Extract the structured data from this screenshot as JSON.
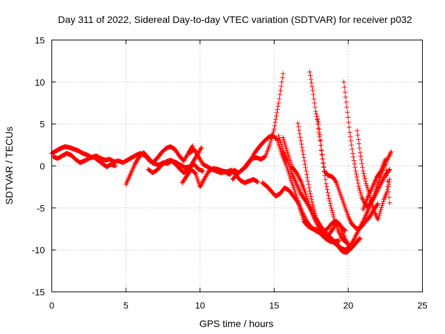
{
  "chart_data": {
    "type": "scatter",
    "title": "Day 311 of 2022, Sidereal Day-to-day VTEC variation (SDTVAR) for receiver p032",
    "xlabel": "GPS time / hours",
    "ylabel": "SDTVAR / TECUs",
    "xlim": [
      0,
      25
    ],
    "ylim": [
      -15,
      15
    ],
    "xticks": [
      "0",
      "5",
      "10",
      "15",
      "20",
      "25"
    ],
    "yticks": [
      "-15",
      "-10",
      "-5",
      "0",
      "5",
      "10",
      "15"
    ],
    "grid": true,
    "marker": "+",
    "color": "#ff0000",
    "series": [
      {
        "name": "track-a",
        "x": [
          0.0,
          0.3,
          0.6,
          0.9,
          1.2,
          1.5,
          1.8,
          2.1,
          2.4,
          2.7,
          3.0,
          3.3,
          3.6,
          3.9,
          4.2,
          4.5,
          4.8,
          5.1,
          5.4,
          5.7,
          6.0,
          6.3,
          6.6,
          6.9,
          7.2,
          7.5,
          7.8,
          8.1,
          8.4,
          8.7,
          9.0,
          9.3,
          9.6,
          9.9,
          10.2
        ],
        "y": [
          1.5,
          1.8,
          2.1,
          2.3,
          2.2,
          2.0,
          1.8,
          1.5,
          1.3,
          1.0,
          1.2,
          0.9,
          0.7,
          0.8,
          0.5,
          0.6,
          0.4,
          0.7,
          1.0,
          1.3,
          1.5,
          1.2,
          0.6,
          0.3,
          0.1,
          0.4,
          0.3,
          0.6,
          0.4,
          0.1,
          -0.2,
          -0.1,
          0.2,
          -0.4,
          -0.6
        ]
      },
      {
        "name": "track-b",
        "x": [
          0.1,
          0.4,
          0.7,
          1.0,
          1.3,
          1.6,
          1.9,
          2.2,
          2.5,
          2.8,
          3.1,
          3.4,
          3.7,
          4.0,
          4.3
        ],
        "y": [
          1.1,
          0.9,
          1.2,
          1.5,
          1.3,
          0.8,
          0.4,
          0.6,
          0.9,
          1.1,
          0.7,
          0.3,
          -0.1,
          0.2,
          0.0
        ]
      },
      {
        "name": "track-c",
        "x": [
          5.0,
          5.3,
          5.6,
          5.9,
          6.2,
          6.5,
          6.8,
          7.1,
          7.4,
          7.7,
          8.0,
          8.3,
          8.6,
          8.9,
          9.2,
          9.5
        ],
        "y": [
          -2.2,
          -1.0,
          0.2,
          1.1,
          1.6,
          1.0,
          0.4,
          0.9,
          1.6,
          2.1,
          2.3,
          2.0,
          1.2,
          0.6,
          1.5,
          2.4
        ]
      },
      {
        "name": "track-d",
        "x": [
          6.5,
          6.8,
          7.1,
          7.4,
          7.7,
          8.0,
          8.3,
          8.6,
          8.9,
          9.2,
          9.5,
          9.8,
          10.1
        ],
        "y": [
          -0.4,
          -0.8,
          -0.5,
          0.1,
          0.5,
          0.7,
          0.3,
          -0.3,
          -0.8,
          -0.5,
          0.4,
          1.3,
          2.2
        ]
      },
      {
        "name": "track-e",
        "x": [
          8.8,
          9.1,
          9.4,
          9.7,
          10.0,
          10.3,
          10.6,
          10.9,
          11.2,
          11.5,
          11.8,
          12.1,
          12.4,
          12.7,
          13.0,
          13.3,
          13.6,
          13.9
        ],
        "y": [
          -2.0,
          -1.2,
          -0.4,
          -0.9,
          -2.5,
          -1.5,
          -0.6,
          -0.3,
          -0.4,
          -0.6,
          -0.7,
          -0.5,
          -1.0,
          -1.7,
          -2.0,
          -1.8,
          -1.6,
          -1.9
        ]
      },
      {
        "name": "track-f",
        "x": [
          9.3,
          9.6,
          9.9,
          10.2,
          10.5,
          10.8,
          11.1,
          11.4,
          11.7,
          12.0,
          12.3,
          12.6,
          12.9,
          13.2,
          13.5,
          13.8,
          14.1,
          14.4,
          14.7,
          15.0,
          15.3,
          15.6
        ],
        "y": [
          1.5,
          2.0,
          1.1,
          0.2,
          -0.1,
          -0.4,
          -0.6,
          -0.8,
          -0.7,
          -1.0,
          -0.5,
          -0.8,
          -0.4,
          0.3,
          0.9,
          1.0,
          0.8,
          1.1,
          2.5,
          4.4,
          7.5,
          11.0
        ]
      },
      {
        "name": "track-g",
        "x": [
          12.2,
          12.5,
          12.8,
          13.1,
          13.4,
          13.7,
          14.0,
          14.3,
          14.6,
          14.9,
          15.2,
          15.5,
          15.8,
          16.1,
          16.4,
          16.7,
          17.0,
          17.3,
          17.6,
          17.9,
          18.2,
          18.5,
          18.8,
          19.1,
          19.4
        ],
        "y": [
          -1.6,
          -1.0,
          -0.5,
          -0.1,
          0.7,
          1.6,
          2.3,
          2.9,
          3.4,
          3.6,
          3.2,
          1.5,
          0.2,
          -1.5,
          -3.0,
          -4.8,
          -6.6,
          -7.2,
          -7.5,
          -7.6,
          -8.2,
          -8.7,
          -9.0,
          -9.0,
          -8.9
        ]
      },
      {
        "name": "track-h",
        "x": [
          14.2,
          14.5,
          14.8,
          15.1,
          15.4,
          15.7,
          16.0,
          16.3,
          16.6,
          16.9,
          17.2,
          17.5,
          17.8,
          18.1,
          18.4,
          18.7,
          19.0,
          19.3,
          19.6,
          19.9,
          20.2,
          20.5,
          20.8
        ],
        "y": [
          -2.0,
          -2.4,
          -3.0,
          -3.6,
          -3.3,
          -2.6,
          -2.9,
          -3.6,
          -4.3,
          -5.5,
          -6.6,
          -7.3,
          -7.7,
          -8.0,
          -8.2,
          -8.6,
          -9.1,
          -9.5,
          -10.2,
          -10.3,
          -9.8,
          -9.2,
          -8.6
        ]
      },
      {
        "name": "track-i",
        "x": [
          15.3,
          15.6,
          15.9,
          16.2,
          16.5,
          16.8,
          17.1,
          17.4,
          17.7,
          18.0,
          18.3,
          18.6,
          18.9,
          19.2,
          19.5,
          19.8,
          20.1,
          20.4,
          20.7,
          21.0,
          21.3,
          21.6,
          21.9,
          22.2,
          22.5,
          22.8
        ],
        "y": [
          3.6,
          1.8,
          0.6,
          -0.9,
          -2.1,
          -3.3,
          -4.1,
          -5.0,
          -6.0,
          -6.8,
          -7.6,
          -8.2,
          -8.7,
          -9.2,
          -9.8,
          -10.0,
          -9.6,
          -8.7,
          -7.6,
          -6.6,
          -5.4,
          -4.2,
          -3.2,
          -2.1,
          -1.1,
          -0.4
        ]
      },
      {
        "name": "track-j",
        "x": [
          15.6,
          15.9,
          16.2,
          16.5,
          16.8,
          17.1,
          17.4,
          17.7,
          18.0,
          18.3,
          18.6,
          18.9,
          19.2,
          19.5,
          19.8
        ],
        "y": [
          3.4,
          1.6,
          -0.1,
          -0.8,
          -1.8,
          -3.2,
          -4.8,
          -6.2,
          -7.2,
          -7.8,
          -7.5,
          -6.8,
          -6.6,
          -7.2,
          -7.7
        ]
      },
      {
        "name": "track-k",
        "x": [
          16.6,
          16.8,
          17.0,
          17.2,
          17.4,
          17.6,
          17.8,
          18.0,
          18.2,
          18.4,
          18.6,
          18.8,
          19.0,
          19.2,
          19.4,
          19.6,
          19.8,
          20.0,
          20.2
        ],
        "y": [
          5.1,
          3.0,
          1.0,
          -1.0,
          -3.0,
          -4.6,
          -5.9,
          -7.0,
          -7.6,
          -8.1,
          -8.4,
          -7.9,
          -7.4,
          -6.6,
          -6.9,
          -7.8,
          -8.7,
          -9.4,
          -9.8
        ]
      },
      {
        "name": "track-l",
        "x": [
          17.4,
          17.6,
          17.8,
          18.0,
          18.2,
          18.4,
          18.6,
          18.8,
          19.0,
          19.2,
          19.4,
          19.6,
          19.8,
          20.0,
          20.2,
          20.4,
          20.6,
          20.8,
          21.0,
          21.2,
          21.4,
          21.6,
          21.8,
          22.0
        ],
        "y": [
          11.2,
          9.0,
          6.5,
          5.0,
          1.8,
          -0.6,
          -1.1,
          -1.2,
          -1.4,
          -2.0,
          -3.0,
          -4.0,
          -5.0,
          -6.0,
          -6.8,
          -7.2,
          -7.5,
          -7.4,
          -7.0,
          -6.5,
          -6.2,
          -5.6,
          -5.0,
          -4.5
        ]
      },
      {
        "name": "track-m",
        "x": [
          17.9,
          18.1,
          18.3,
          18.5,
          18.7,
          18.9,
          19.1,
          19.3,
          19.5,
          19.7,
          19.9
        ],
        "y": [
          5.5,
          3.0,
          0.3,
          -2.1,
          -3.9,
          -5.3,
          -6.6,
          -7.6,
          -8.4,
          -8.9,
          -9.1
        ]
      },
      {
        "name": "track-n",
        "x": [
          19.7,
          19.9,
          20.1,
          20.3,
          20.5,
          20.7,
          20.9,
          21.1,
          21.3,
          21.5,
          21.7,
          21.9,
          22.1,
          22.3,
          22.5,
          22.7,
          22.9
        ],
        "y": [
          10.0,
          7.0,
          4.0,
          1.5,
          -0.6,
          -2.4,
          -3.7,
          -4.4,
          -4.9,
          -4.4,
          -3.7,
          -2.6,
          -1.6,
          -0.6,
          0.3,
          1.0,
          1.7
        ]
      },
      {
        "name": "track-o",
        "x": [
          20.6,
          20.8,
          21.0,
          21.2,
          21.4,
          21.6,
          21.8,
          22.0,
          22.2,
          22.4,
          22.6,
          22.8
        ],
        "y": [
          4.2,
          1.6,
          -0.6,
          -2.1,
          -3.2,
          -4.6,
          -5.6,
          -6.4,
          -5.2,
          -4.0,
          -3.1,
          -1.6
        ]
      },
      {
        "name": "track-p",
        "x": [
          21.0,
          21.3,
          21.6,
          21.9,
          22.2,
          22.5,
          22.8
        ],
        "y": [
          -5.2,
          -3.8,
          -2.6,
          -1.4,
          -0.6,
          0.8,
          -4.4
        ]
      }
    ]
  }
}
